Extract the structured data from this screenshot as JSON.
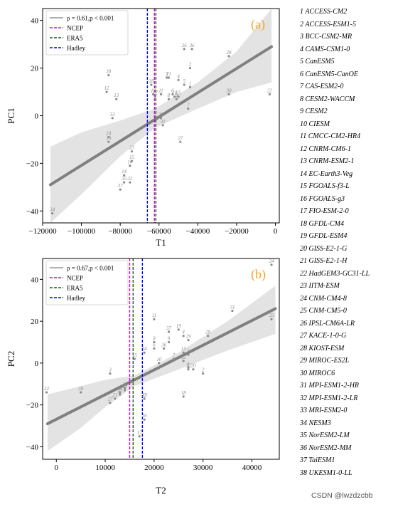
{
  "colors": {
    "axis": "#000000",
    "point": "#8c8c8c",
    "regression": "#808080",
    "band": "#d9d9d9",
    "panel_label": "#f5a623",
    "ncep": "#e000e0",
    "era5": "#1a5c1a",
    "hadley": "#0000ff"
  },
  "legend_entries": [
    "ρ = 0.61,p < 0.001",
    "NCEP",
    "ERA5",
    "Hadley"
  ],
  "models": [
    "ACCESS-CM2",
    "ACCESS-ESM1-5",
    "BCC-CSM2-MR",
    "CAMS-CSM1-0",
    "CanESM5",
    "CanESM5-CanOE",
    "CAS-ESM2-0",
    "CESM2-WACCM",
    "CESM2",
    "CIESM",
    "CMCC-CM2-HR4",
    "CNRM-CM6-1",
    "CNRM-ESM2-1",
    "EC-Earth3-Veg",
    "FGOALS-f3-L",
    "FGOALS-g3",
    "FIO-ESM-2-0",
    "GFDL-CM4",
    "GFDL-ESM4",
    "GISS-E2-1-G",
    "GISS-E2-1-H",
    "HadGEM3-GC31-LL",
    "IITM-ESM",
    "CNM-CM4-8",
    "CNM-CM5-0",
    "IPSL-CM6A-LR",
    "KACE-1-0-G",
    "KIOST-ESM",
    "MIROC-ES2L",
    "MIROC6",
    "MPI-ESM1-2-HR",
    "MPI-ESM1-2-LR",
    "MRI-ESM2-0",
    "NESM3",
    "NorESM2-LM",
    "NorESM2-MM",
    "TaiESM1",
    "UKESM1-0-LL"
  ],
  "model_list_text": [
    "1  ACCESS-CM2",
    "2  ACCESS-ESM1-5",
    "3  BCC-CSM2-MR",
    "4  CAMS-CSM1-0",
    "5  CanESM5",
    "6  CanESM5-CanOE",
    "7  CAS-ESM2-0",
    "8  CESM2-WACCM",
    "9  CESM2",
    "10  CIESM",
    "11  CMCC-CM2-HR4",
    "12  CNRM-CM6-1",
    "13  CNRM-ESM2-1",
    "14  EC-Earth3-Veg",
    "15  FGOALS-f3-L",
    "16  FGOALS-g3",
    "17  FIO-ESM-2-0",
    "18  GFDL-CM4",
    "19  GFDL-ESM4",
    "20  GISS-E2-1-G",
    "21  GISS-E2-1-H",
    "22  HadGEM3-GC31-LL",
    "23  IITM-ESM",
    "24  CNM-CM4-8",
    "25  CNM-CM5-0",
    "26  IPSL-CM6A-LR",
    "27  KACE-1-0-G",
    "28  KIOST-ESM",
    "29  MIROC-ES2L",
    "30  MIROC6",
    "31  MPI-ESM1-2-HR",
    "32  MPI-ESM1-2-LR",
    "33  MRI-ESM2-0",
    "34  NESM3",
    "35  NorESM2-LM",
    "36  NorESM2-MM",
    "37  TaiESM1",
    "38  UKESM1-0-LL"
  ],
  "watermark": "CSDN @lwzdzcbb",
  "chart_data": [
    {
      "type": "scatter",
      "panel_label": "(a)",
      "title": "",
      "xlabel": "T1",
      "ylabel": "PC1",
      "xlim": [
        -120000,
        2000
      ],
      "ylim": [
        -45,
        45
      ],
      "xticks": [
        -120000,
        -100000,
        -80000,
        -60000,
        -40000,
        -20000,
        0
      ],
      "xtick_labels": [
        "−120000",
        "−100000",
        "−80000",
        "−60000",
        "−40000",
        "−20000",
        "0"
      ],
      "yticks": [
        -40,
        -20,
        0,
        20,
        40
      ],
      "ytick_labels": [
        "−40",
        "−20",
        "0",
        "20",
        "40"
      ],
      "legend": {
        "position": "top-left",
        "entries": [
          "ρ = 0.61,p < 0.001",
          "NCEP",
          "ERA5",
          "Hadley"
        ]
      },
      "correlation_text": "ρ = 0.61,p < 0.001",
      "grid": false,
      "reference_lines": [
        {
          "name": "NCEP",
          "x": -62000,
          "color": "#e000e0"
        },
        {
          "name": "ERA5",
          "x": -62000,
          "color": "#1a5c1a"
        },
        {
          "name": "Hadley",
          "x": -66000,
          "color": "#0000ff"
        }
      ],
      "regression": {
        "x": [
          -116000,
          -2000
        ],
        "y": [
          -29,
          29
        ]
      },
      "band": {
        "x": [
          -116000,
          -100000,
          -80000,
          -62000,
          -40000,
          -20000,
          -2000
        ],
        "upper": [
          -13,
          -7,
          -2,
          3,
          14,
          27,
          45
        ],
        "lower": [
          -45,
          -33,
          -17,
          -5,
          3,
          10,
          14
        ]
      },
      "points": [
        {
          "id": 1,
          "x": -44000,
          "y": 12
        },
        {
          "id": 2,
          "x": -44000,
          "y": 20
        },
        {
          "id": 3,
          "x": -56000,
          "y": 16
        },
        {
          "id": 4,
          "x": -50000,
          "y": 15
        },
        {
          "id": 5,
          "x": -47000,
          "y": 13
        },
        {
          "id": 6,
          "x": -53000,
          "y": 9
        },
        {
          "id": 7,
          "x": -45000,
          "y": 3
        },
        {
          "id": 8,
          "x": -55000,
          "y": 7
        },
        {
          "id": 9,
          "x": -51000,
          "y": 7
        },
        {
          "id": 10,
          "x": -52000,
          "y": 8
        },
        {
          "id": 11,
          "x": -59000,
          "y": 9
        },
        {
          "id": 12,
          "x": -87000,
          "y": 10
        },
        {
          "id": 13,
          "x": -82000,
          "y": 7
        },
        {
          "id": 14,
          "x": -78000,
          "y": -25
        },
        {
          "id": 15,
          "x": -74000,
          "y": -19
        },
        {
          "id": 16,
          "x": -75000,
          "y": -21
        },
        {
          "id": 17,
          "x": -62000,
          "y": 8
        },
        {
          "id": 18,
          "x": -64000,
          "y": 13
        },
        {
          "id": 19,
          "x": -63000,
          "y": 9
        },
        {
          "id": 20,
          "x": -59000,
          "y": -1
        },
        {
          "id": 21,
          "x": -55000,
          "y": 16
        },
        {
          "id": 22,
          "x": -3000,
          "y": 9
        },
        {
          "id": 23,
          "x": -74000,
          "y": -15
        },
        {
          "id": 24,
          "x": -86000,
          "y": -9
        },
        {
          "id": 25,
          "x": -50000,
          "y": 8
        },
        {
          "id": 26,
          "x": -47000,
          "y": 28
        },
        {
          "id": 27,
          "x": -49000,
          "y": -11
        },
        {
          "id": 28,
          "x": -24000,
          "y": 25
        },
        {
          "id": 29,
          "x": -86000,
          "y": -11
        },
        {
          "id": 30,
          "x": -24000,
          "y": 9
        },
        {
          "id": 31,
          "x": -58000,
          "y": -4
        },
        {
          "id": 32,
          "x": -75000,
          "y": -28
        },
        {
          "id": 33,
          "x": -84000,
          "y": -1
        },
        {
          "id": 34,
          "x": -115000,
          "y": -41
        },
        {
          "id": 35,
          "x": -78000,
          "y": -28
        },
        {
          "id": 36,
          "x": -43000,
          "y": 28
        },
        {
          "id": 37,
          "x": -80000,
          "y": -31
        },
        {
          "id": 38,
          "x": -86000,
          "y": 17
        }
      ]
    },
    {
      "type": "scatter",
      "panel_label": "(b)",
      "title": "",
      "xlabel": "T2",
      "ylabel": "PC2",
      "xlim": [
        -2800,
        45600
      ],
      "ylim": [
        -46,
        50
      ],
      "xticks": [
        0,
        10000,
        20000,
        30000,
        40000
      ],
      "xtick_labels": [
        "0",
        "10000",
        "20000",
        "30000",
        "40000"
      ],
      "yticks": [
        -40,
        -20,
        0,
        20,
        40
      ],
      "ytick_labels": [
        "−40",
        "−20",
        "0",
        "20",
        "40"
      ],
      "legend": {
        "position": "top-left",
        "entries": [
          "ρ = 0.67,p < 0.001",
          "NCEP",
          "ERA5",
          "Hadley"
        ]
      },
      "correlation_text": "ρ = 0.67,p < 0.001",
      "grid": false,
      "reference_lines": [
        {
          "name": "NCEP",
          "x": 15000,
          "color": "#e000e0"
        },
        {
          "name": "ERA5",
          "x": 15700,
          "color": "#1a5c1a"
        },
        {
          "name": "Hadley",
          "x": 17600,
          "color": "#0000ff"
        }
      ],
      "regression": {
        "x": [
          -1800,
          44800
        ],
        "y": [
          -29,
          26
        ]
      },
      "band": {
        "x": [
          -1800,
          5000,
          10000,
          16000,
          25000,
          35000,
          44800
        ],
        "upper": [
          -15,
          -11,
          -8,
          -6,
          5,
          20,
          37
        ],
        "lower": [
          -42,
          -31,
          -21,
          -11,
          -3,
          6,
          14
        ]
      },
      "points": [
        {
          "id": 1,
          "x": 27000,
          "y": -2
        },
        {
          "id": 2,
          "x": 30000,
          "y": -5
        },
        {
          "id": 3,
          "x": 11000,
          "y": -5
        },
        {
          "id": 4,
          "x": 26000,
          "y": 13
        },
        {
          "id": 5,
          "x": 27000,
          "y": 4
        },
        {
          "id": 6,
          "x": 20000,
          "y": 7
        },
        {
          "id": 7,
          "x": 24000,
          "y": 2
        },
        {
          "id": 8,
          "x": 20000,
          "y": 10
        },
        {
          "id": 9,
          "x": 23000,
          "y": 10
        },
        {
          "id": 10,
          "x": 21000,
          "y": 0
        },
        {
          "id": 11,
          "x": 20000,
          "y": 21
        },
        {
          "id": 12,
          "x": 26000,
          "y": 1
        },
        {
          "id": 13,
          "x": 26000,
          "y": 5
        },
        {
          "id": 14,
          "x": 13000,
          "y": -14
        },
        {
          "id": 15,
          "x": 16000,
          "y": 2
        },
        {
          "id": 16,
          "x": 18000,
          "y": -27
        },
        {
          "id": 17,
          "x": 17000,
          "y": -35
        },
        {
          "id": 18,
          "x": 26000,
          "y": -16
        },
        {
          "id": 19,
          "x": 25000,
          "y": 16
        },
        {
          "id": 20,
          "x": 28000,
          "y": -3
        },
        {
          "id": 21,
          "x": 12000,
          "y": -17
        },
        {
          "id": 22,
          "x": -2000,
          "y": -14
        },
        {
          "id": 23,
          "x": 18000,
          "y": -17
        },
        {
          "id": 24,
          "x": 44000,
          "y": 47
        },
        {
          "id": 25,
          "x": 44000,
          "y": 21
        },
        {
          "id": 26,
          "x": 14000,
          "y": -12
        },
        {
          "id": 27,
          "x": 11000,
          "y": -19
        },
        {
          "id": 28,
          "x": 31000,
          "y": 13
        },
        {
          "id": 29,
          "x": 27000,
          "y": 11
        },
        {
          "id": 30,
          "x": 27000,
          "y": -3
        },
        {
          "id": 31,
          "x": 36000,
          "y": 25
        },
        {
          "id": 32,
          "x": 13000,
          "y": -15
        },
        {
          "id": 33,
          "x": 14000,
          "y": -13
        },
        {
          "id": 34,
          "x": 18000,
          "y": 5
        },
        {
          "id": 35,
          "x": 18000,
          "y": -17
        },
        {
          "id": 36,
          "x": 22000,
          "y": 7
        },
        {
          "id": 37,
          "x": 23000,
          "y": 15
        },
        {
          "id": 38,
          "x": 5000,
          "y": -14
        }
      ]
    }
  ]
}
